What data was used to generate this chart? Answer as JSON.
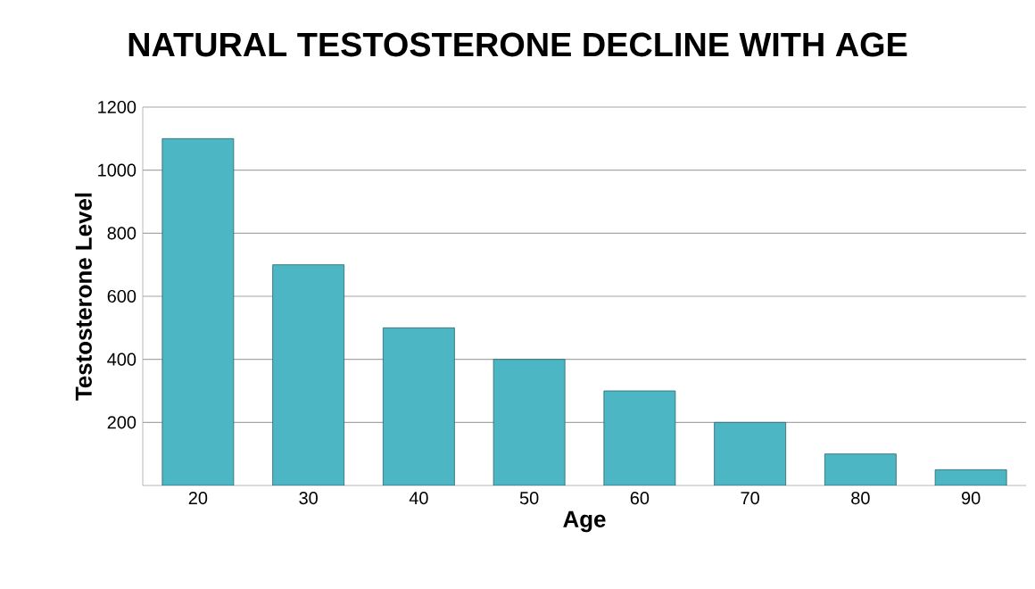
{
  "chart_data": {
    "type": "bar",
    "title": "NATURAL TESTOSTERONE DECLINE WITH AGE",
    "xlabel": "Age",
    "ylabel": "Testosterone Level",
    "categories": [
      "20",
      "30",
      "40",
      "50",
      "60",
      "70",
      "80",
      "90"
    ],
    "values": [
      1100,
      700,
      500,
      400,
      300,
      200,
      100,
      50
    ],
    "color": "#4db6c4",
    "ylim": [
      0,
      1200
    ],
    "yticks": [
      200,
      400,
      600,
      800,
      1000,
      1200
    ],
    "grid": "y"
  }
}
